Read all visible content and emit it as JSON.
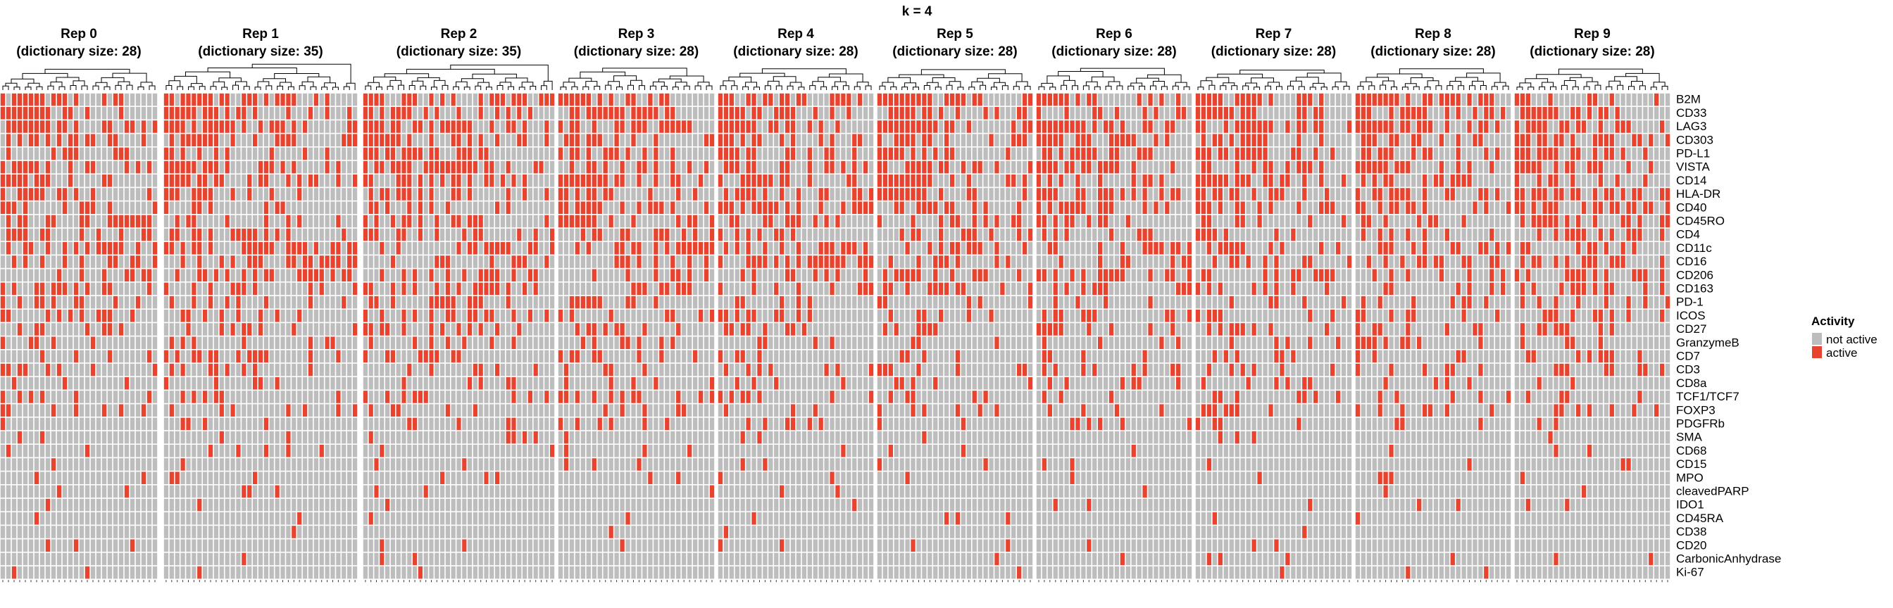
{
  "title": "k = 4",
  "colors": {
    "inactive": "#bdbdbd",
    "active": "#e8432f",
    "gap": "#ffffff",
    "tree": "#000000"
  },
  "legend": {
    "title": "Activity",
    "items": [
      {
        "label": "not active",
        "color": "#bdbdbd"
      },
      {
        "label": "active",
        "color": "#e8432f"
      }
    ]
  },
  "chart_data": {
    "type": "heatmap",
    "title": "k = 4",
    "rows": [
      "B2M",
      "CD33",
      "LAG3",
      "CD303",
      "PD-L1",
      "VISTA",
      "CD14",
      "HLA-DR",
      "CD40",
      "CD45RO",
      "CD4",
      "CD11c",
      "CD16",
      "CD206",
      "CD163",
      "PD-1",
      "ICOS",
      "CD27",
      "GranzymeB",
      "CD7",
      "CD3",
      "CD8a",
      "TCF1/TCF7",
      "FOXP3",
      "PDGFRb",
      "SMA",
      "CD68",
      "CD15",
      "MPO",
      "cleavedPARP",
      "IDO1",
      "CD45RA",
      "CD38",
      "CD20",
      "CarbonicAnhydrase",
      "Ki-67"
    ],
    "legend": {
      "title": "Activity",
      "levels": [
        "not active",
        "active"
      ]
    },
    "panels": [
      {
        "title_line1": "Rep 0",
        "title_line2": "(dictionary size: 28)",
        "dictionary_size": 28
      },
      {
        "title_line1": "Rep 1",
        "title_line2": "(dictionary size: 35)",
        "dictionary_size": 35
      },
      {
        "title_line1": "Rep 2",
        "title_line2": "(dictionary size: 35)",
        "dictionary_size": 35
      },
      {
        "title_line1": "Rep 3",
        "title_line2": "(dictionary size: 28)",
        "dictionary_size": 28
      },
      {
        "title_line1": "Rep 4",
        "title_line2": "(dictionary size: 28)",
        "dictionary_size": 28
      },
      {
        "title_line1": "Rep 5",
        "title_line2": "(dictionary size: 28)",
        "dictionary_size": 28
      },
      {
        "title_line1": "Rep 6",
        "title_line2": "(dictionary size: 28)",
        "dictionary_size": 28
      },
      {
        "title_line1": "Rep 7",
        "title_line2": "(dictionary size: 28)",
        "dictionary_size": 28
      },
      {
        "title_line1": "Rep 8",
        "title_line2": "(dictionary size: 28)",
        "dictionary_size": 28
      },
      {
        "title_line1": "Rep 9",
        "title_line2": "(dictionary size: 28)",
        "dictionary_size": 28
      }
    ]
  }
}
